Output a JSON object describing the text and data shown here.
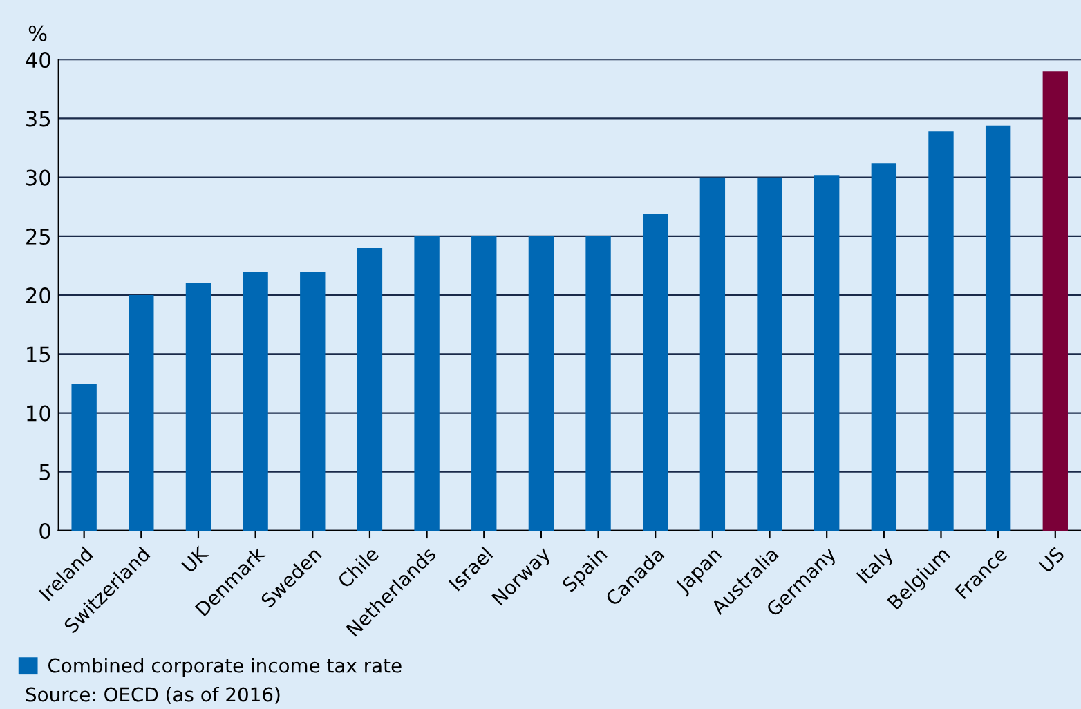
{
  "chart_data": {
    "type": "bar",
    "ylabel": "%",
    "categories": [
      "Ireland",
      "Switzerland",
      "UK",
      "Denmark",
      "Sweden",
      "Chile",
      "Netherlands",
      "Israel",
      "Norway",
      "Spain",
      "Canada",
      "Japan",
      "Australia",
      "Germany",
      "Italy",
      "Belgium",
      "France",
      "US"
    ],
    "series": [
      {
        "name": "Combined corporate income tax rate",
        "color": "#0068b4",
        "colors": [
          "#0068b4",
          "#0068b4",
          "#0068b4",
          "#0068b4",
          "#0068b4",
          "#0068b4",
          "#0068b4",
          "#0068b4",
          "#0068b4",
          "#0068b4",
          "#0068b4",
          "#0068b4",
          "#0068b4",
          "#0068b4",
          "#0068b4",
          "#0068b4",
          "#0068b4",
          "#7b0038"
        ],
        "values": [
          12.5,
          20,
          21,
          22,
          22,
          24,
          25,
          25,
          25,
          25,
          26.9,
          30,
          30,
          30.2,
          31.2,
          33.9,
          34.4,
          39
        ]
      }
    ],
    "ylim": [
      0,
      40
    ],
    "yticks": [
      0,
      5,
      10,
      15,
      20,
      25,
      30,
      35,
      40
    ],
    "grid": "y",
    "legend": "bottom left",
    "annotations": [
      "Source: OECD (as of 2016)"
    ]
  }
}
